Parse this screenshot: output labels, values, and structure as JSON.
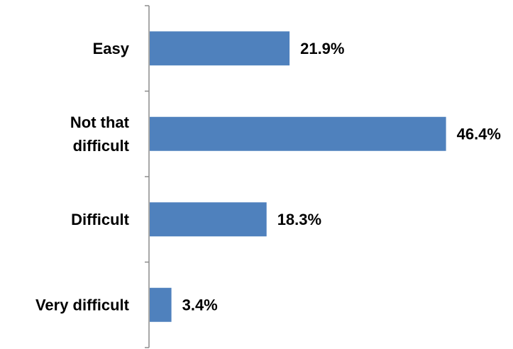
{
  "chart_data": {
    "type": "bar",
    "orientation": "horizontal",
    "categories": [
      "Easy",
      "Not that difficult",
      "Difficult",
      "Very difficult"
    ],
    "category_lines": [
      [
        "Easy"
      ],
      [
        "Not that",
        "difficult"
      ],
      [
        "Difficult"
      ],
      [
        "Very difficult"
      ]
    ],
    "values": [
      21.9,
      46.4,
      18.3,
      3.4
    ],
    "value_labels": [
      "21.9%",
      "46.4%",
      "18.3%",
      "3.4%"
    ],
    "unit": "%",
    "title": "",
    "xlabel": "",
    "ylabel": "",
    "xlim": [
      0,
      50
    ],
    "grid": false,
    "legend": "none",
    "colors": {
      "bar": "#4f81bd",
      "axis": "#8c8c8c",
      "text": "#000000"
    }
  }
}
